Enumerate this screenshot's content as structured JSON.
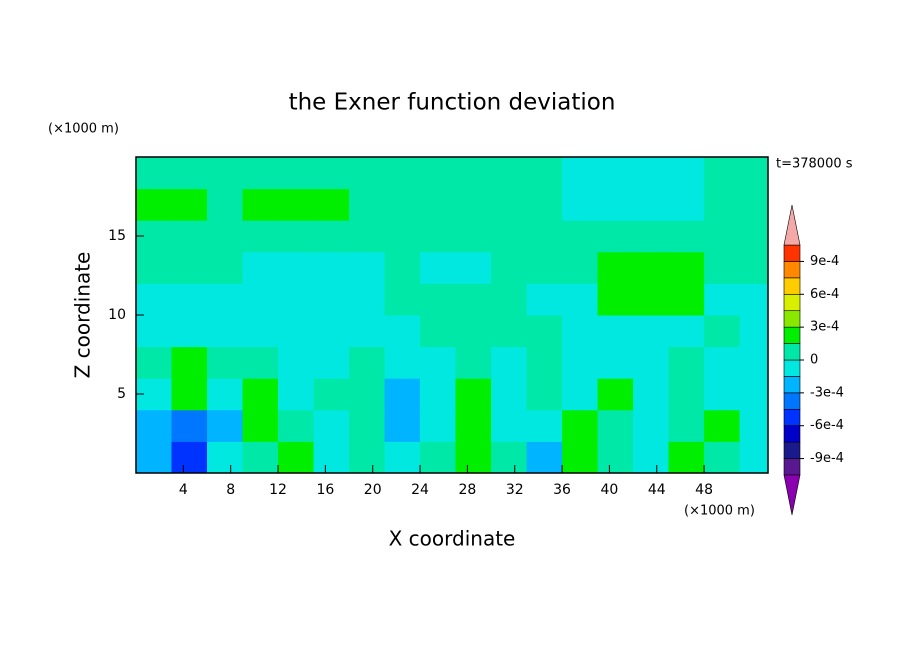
{
  "chart_data": {
    "type": "contour",
    "title": "the Exner function deviation",
    "xlabel": "X coordinate",
    "ylabel": "Z coordinate",
    "x_unit": "(×1000 m)",
    "y_unit": "(×1000 m)",
    "annotation": "t=378000 s",
    "xlim": [
      0,
      53.4
    ],
    "ylim": [
      0,
      20
    ],
    "xticks": [
      4,
      8,
      12,
      16,
      20,
      24,
      28,
      32,
      36,
      40,
      44,
      48
    ],
    "yticks": [
      5,
      10,
      15
    ],
    "x": [
      1.5,
      4.5,
      7.5,
      10.5,
      13.5,
      16.5,
      19.5,
      22.5,
      25.5,
      28.5,
      31.5,
      34.5,
      37.5,
      40.5,
      43.5,
      46.5,
      49.5,
      52.5
    ],
    "y": [
      1,
      3,
      5,
      7,
      9,
      11,
      13,
      15,
      17,
      19
    ],
    "z": [
      [
        -0.0002,
        -0.0006,
        -7e-05,
        5e-05,
        0.0002,
        -7e-05,
        5e-05,
        -7e-05,
        5e-05,
        0.0002,
        5e-05,
        -0.0002,
        0.0002,
        5e-05,
        -7e-05,
        0.0002,
        5e-05,
        -7e-05
      ],
      [
        -0.0002,
        -0.0004,
        -0.0002,
        0.0002,
        5e-05,
        -7e-05,
        5e-05,
        -0.0002,
        -7e-05,
        0.0002,
        -7e-05,
        -7e-05,
        0.0002,
        5e-05,
        -7e-05,
        5e-05,
        0.0002,
        -7e-05
      ],
      [
        -7e-05,
        0.0002,
        -7e-05,
        0.0002,
        -7e-05,
        5e-05,
        5e-05,
        -0.0002,
        -7e-05,
        0.0002,
        -7e-05,
        5e-05,
        -7e-05,
        0.0002,
        -7e-05,
        5e-05,
        -7e-05,
        -7e-05
      ],
      [
        5e-05,
        0.0002,
        5e-05,
        5e-05,
        -7e-05,
        -7e-05,
        5e-05,
        -7e-05,
        -7e-05,
        5e-05,
        -7e-05,
        5e-05,
        -7e-05,
        -7e-05,
        -7e-05,
        5e-05,
        -7e-05,
        -7e-05
      ],
      [
        -7e-05,
        -7e-05,
        -7e-05,
        -7e-05,
        -7e-05,
        -7e-05,
        -7e-05,
        -7e-05,
        5e-05,
        5e-05,
        5e-05,
        5e-05,
        -7e-05,
        -7e-05,
        -7e-05,
        -7e-05,
        5e-05,
        -7e-05
      ],
      [
        -7e-05,
        -7e-05,
        -7e-05,
        -7e-05,
        -7e-05,
        -7e-05,
        -7e-05,
        5e-05,
        5e-05,
        5e-05,
        5e-05,
        -7e-05,
        -7e-05,
        0.0002,
        0.0002,
        0.0002,
        -7e-05,
        -7e-05
      ],
      [
        5e-05,
        5e-05,
        5e-05,
        -7e-05,
        -7e-05,
        -7e-05,
        -7e-05,
        5e-05,
        -7e-05,
        -7e-05,
        5e-05,
        5e-05,
        5e-05,
        0.0002,
        0.0002,
        0.0002,
        5e-05,
        5e-05
      ],
      [
        5e-05,
        5e-05,
        5e-05,
        5e-05,
        5e-05,
        5e-05,
        5e-05,
        5e-05,
        5e-05,
        5e-05,
        5e-05,
        5e-05,
        5e-05,
        5e-05,
        5e-05,
        5e-05,
        5e-05,
        5e-05
      ],
      [
        0.0002,
        0.0002,
        5e-05,
        0.0002,
        0.0002,
        0.0002,
        5e-05,
        5e-05,
        5e-05,
        5e-05,
        5e-05,
        5e-05,
        -7e-05,
        -7e-05,
        -7e-05,
        -7e-05,
        5e-05,
        5e-05
      ],
      [
        5e-05,
        5e-05,
        5e-05,
        5e-05,
        5e-05,
        5e-05,
        5e-05,
        5e-05,
        5e-05,
        5e-05,
        5e-05,
        5e-05,
        -7e-05,
        -7e-05,
        -7e-05,
        -7e-05,
        5e-05,
        5e-05
      ]
    ],
    "levels": [
      -0.00105,
      -0.0009,
      -0.00075,
      -0.0006,
      -0.00045,
      -0.0003,
      -0.00015,
      0,
      0.00015,
      0.0003,
      0.00045,
      0.0006,
      0.00075,
      0.0009,
      0.00105
    ],
    "colors": [
      "#5a1890",
      "#1a1a8c",
      "#0000c8",
      "#0033ff",
      "#0077ff",
      "#00b4ff",
      "#00e8e0",
      "#00e8a8",
      "#00ee00",
      "#88e800",
      "#d8f000",
      "#ffcc00",
      "#ff8800",
      "#ff3300"
    ],
    "under_color": "#8a00b0",
    "over_color": "#f4a8a8",
    "cticks": [
      {
        "value": -0.0009,
        "label": "-9e-4"
      },
      {
        "value": -0.0006,
        "label": "-6e-4"
      },
      {
        "value": -0.0003,
        "label": "-3e-4"
      },
      0,
      {
        "value": 0.0003,
        "label": "3e-4"
      },
      {
        "value": 0.0006,
        "label": "6e-4"
      },
      {
        "value": 0.0009,
        "label": "9e-4"
      }
    ]
  }
}
